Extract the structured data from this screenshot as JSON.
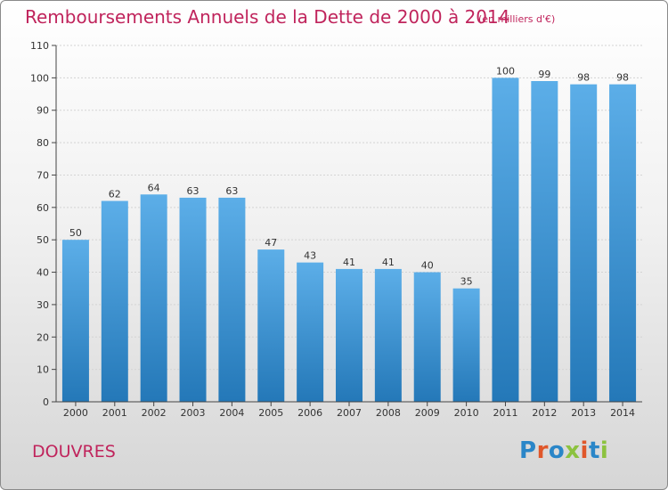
{
  "title": "Remboursements Annuels de la Dette de 2000 à 2014",
  "subtitle": "(en milliers d'€)",
  "city": "DOUVRES",
  "logo": "Proxiti",
  "logo_colors": [
    "#2a86c8",
    "#e0572a",
    "#2a86c8",
    "#8cc23f",
    "#e0572a",
    "#2a86c8",
    "#8cc23f"
  ],
  "colors": {
    "bar_light": "#5caee8",
    "bar_dark": "#2478b8",
    "title": "#c0245c"
  },
  "chart_data": {
    "type": "bar",
    "title": "Remboursements Annuels de la Dette de 2000 à 2014",
    "xlabel": "",
    "ylabel": "",
    "ylim": [
      0,
      110
    ],
    "yticks": [
      0,
      10,
      20,
      30,
      40,
      50,
      60,
      70,
      80,
      90,
      100,
      110
    ],
    "grid": true,
    "categories": [
      "2000",
      "2001",
      "2002",
      "2003",
      "2004",
      "2005",
      "2006",
      "2007",
      "2008",
      "2009",
      "2010",
      "2011",
      "2012",
      "2013",
      "2014"
    ],
    "values": [
      50,
      62,
      64,
      63,
      63,
      47,
      43,
      41,
      41,
      40,
      35,
      100,
      99,
      98,
      98
    ]
  }
}
